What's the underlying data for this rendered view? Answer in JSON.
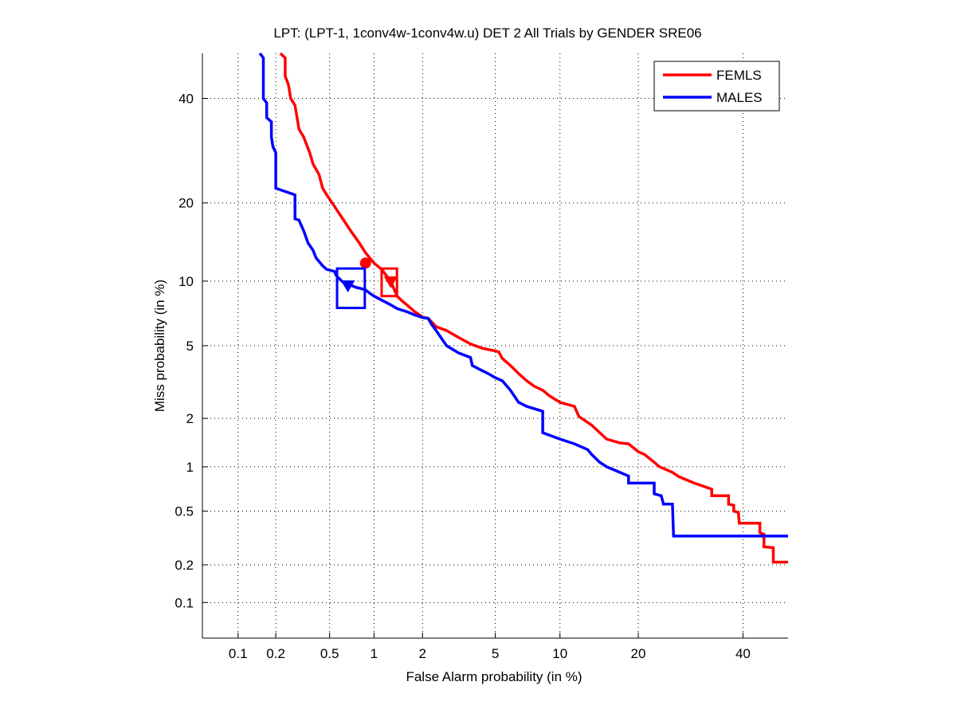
{
  "chart_data": {
    "type": "line",
    "scale": "normal-deviate (DET)",
    "title": "LPT: (LPT-1, 1conv4w-1conv4w.u) DET 2 All Trials by GENDER SRE06",
    "xlabel": "False Alarm probability (in %)",
    "ylabel": "Miss probability (in %)",
    "xlim": [
      0.05,
      50
    ],
    "ylim": [
      0.05,
      50
    ],
    "grid": true,
    "legend_position": "top-right",
    "xticks": [
      0.1,
      0.2,
      0.5,
      1,
      2,
      5,
      10,
      20,
      40
    ],
    "xtick_labels": [
      "0.1",
      "0.2",
      "0.5",
      "1",
      "2",
      "5",
      "10",
      "20",
      "40"
    ],
    "yticks": [
      0.1,
      0.2,
      0.5,
      1,
      2,
      5,
      10,
      20,
      40
    ],
    "ytick_labels": [
      "0.1",
      "0.2",
      "0.5",
      "1",
      "2",
      "5",
      "10",
      "20",
      "40"
    ],
    "series": [
      {
        "name": "FEMLS",
        "color": "#ff0000",
        "x": [
          0.217,
          0.236,
          0.236,
          0.25,
          0.26,
          0.28,
          0.29,
          0.3,
          0.325,
          0.36,
          0.38,
          0.42,
          0.446,
          0.477,
          0.54,
          0.617,
          0.7,
          0.8,
          0.88,
          1.0,
          1.12,
          1.28,
          1.4,
          1.5,
          1.61,
          1.8,
          2.0,
          2.16,
          2.4,
          2.75,
          3.2,
          3.72,
          4.3,
          5.0,
          5.2,
          5.42,
          5.94,
          6.5,
          7.1,
          7.7,
          8.4,
          9.0,
          10.0,
          11.5,
          12.0,
          13.5,
          14.5,
          15.4,
          17.2,
          18.5,
          20.0,
          21.0,
          22.6,
          23.5,
          25.8,
          27.0,
          29.9,
          33.4,
          33.4,
          36.9,
          36.9,
          38.0,
          38.0,
          39.0,
          39.2,
          43.7,
          43.7,
          44.6,
          44.6,
          46.7,
          46.7,
          50
        ],
        "y": [
          50,
          49,
          44.9,
          43,
          40,
          38.5,
          35.9,
          33.5,
          31.9,
          28.8,
          26.7,
          24.8,
          22.4,
          21.3,
          19.5,
          17.6,
          15.9,
          14.3,
          13.1,
          11.9,
          11.2,
          10.0,
          8.6,
          8.2,
          7.85,
          7.3,
          6.9,
          6.8,
          6.2,
          5.94,
          5.5,
          5.1,
          4.85,
          4.7,
          4.65,
          4.3,
          3.95,
          3.58,
          3.27,
          3.05,
          2.9,
          2.7,
          2.48,
          2.35,
          2.05,
          1.82,
          1.64,
          1.5,
          1.42,
          1.4,
          1.25,
          1.2,
          1.07,
          1.0,
          0.92,
          0.86,
          0.78,
          0.71,
          0.64,
          0.64,
          0.56,
          0.55,
          0.5,
          0.49,
          0.41,
          0.41,
          0.35,
          0.34,
          0.275,
          0.27,
          0.21,
          0.21
        ]
      },
      {
        "name": "MALES",
        "color": "#0000ff",
        "x": [
          0.15,
          0.16,
          0.16,
          0.17,
          0.17,
          0.185,
          0.185,
          0.19,
          0.2,
          0.2,
          0.28,
          0.28,
          0.3,
          0.325,
          0.35,
          0.38,
          0.4,
          0.446,
          0.477,
          0.54,
          0.56,
          0.62,
          0.7,
          0.76,
          0.87,
          0.95,
          1.0,
          1.28,
          1.4,
          1.61,
          1.8,
          2.0,
          2.16,
          2.25,
          2.4,
          2.75,
          3.2,
          3.72,
          3.8,
          4.2,
          4.6,
          5.0,
          5.42,
          5.94,
          6.5,
          7.1,
          8.4,
          8.4,
          10.0,
          11.5,
          13.0,
          13.5,
          14.5,
          15.4,
          18.5,
          18.5,
          22.6,
          22.6,
          23.8,
          24.2,
          25.8,
          26.0,
          50
        ],
        "y": [
          50,
          49,
          40,
          39,
          35.9,
          35,
          31.9,
          30,
          28.8,
          22.4,
          21.3,
          17.6,
          17.4,
          15.9,
          14.3,
          13.4,
          12.5,
          11.6,
          11.2,
          11.0,
          10.5,
          9.9,
          9.6,
          9.4,
          9.2,
          8.8,
          8.6,
          7.85,
          7.55,
          7.3,
          7.05,
          6.85,
          6.8,
          6.4,
          5.94,
          5.0,
          4.6,
          4.35,
          3.95,
          3.75,
          3.58,
          3.4,
          3.27,
          2.9,
          2.48,
          2.35,
          2.2,
          1.64,
          1.5,
          1.4,
          1.29,
          1.2,
          1.07,
          1.0,
          0.87,
          0.78,
          0.78,
          0.66,
          0.64,
          0.56,
          0.56,
          0.33,
          0.33
        ]
      }
    ],
    "markers": [
      {
        "series": "FEMLS",
        "shape": "circle",
        "x": 0.88,
        "y": 11.9
      },
      {
        "series": "FEMLS",
        "shape": "triangle",
        "x": 1.28,
        "y": 10.0
      },
      {
        "series": "FEMLS",
        "shape": "box",
        "x": [
          1.12,
          1.4
        ],
        "y": [
          8.6,
          11.3
        ]
      },
      {
        "series": "MALES",
        "shape": "triangle",
        "x": 0.67,
        "y": 9.6
      },
      {
        "series": "MALES",
        "shape": "box",
        "x": [
          0.564,
          0.87
        ],
        "y": [
          7.6,
          11.3
        ]
      }
    ]
  }
}
